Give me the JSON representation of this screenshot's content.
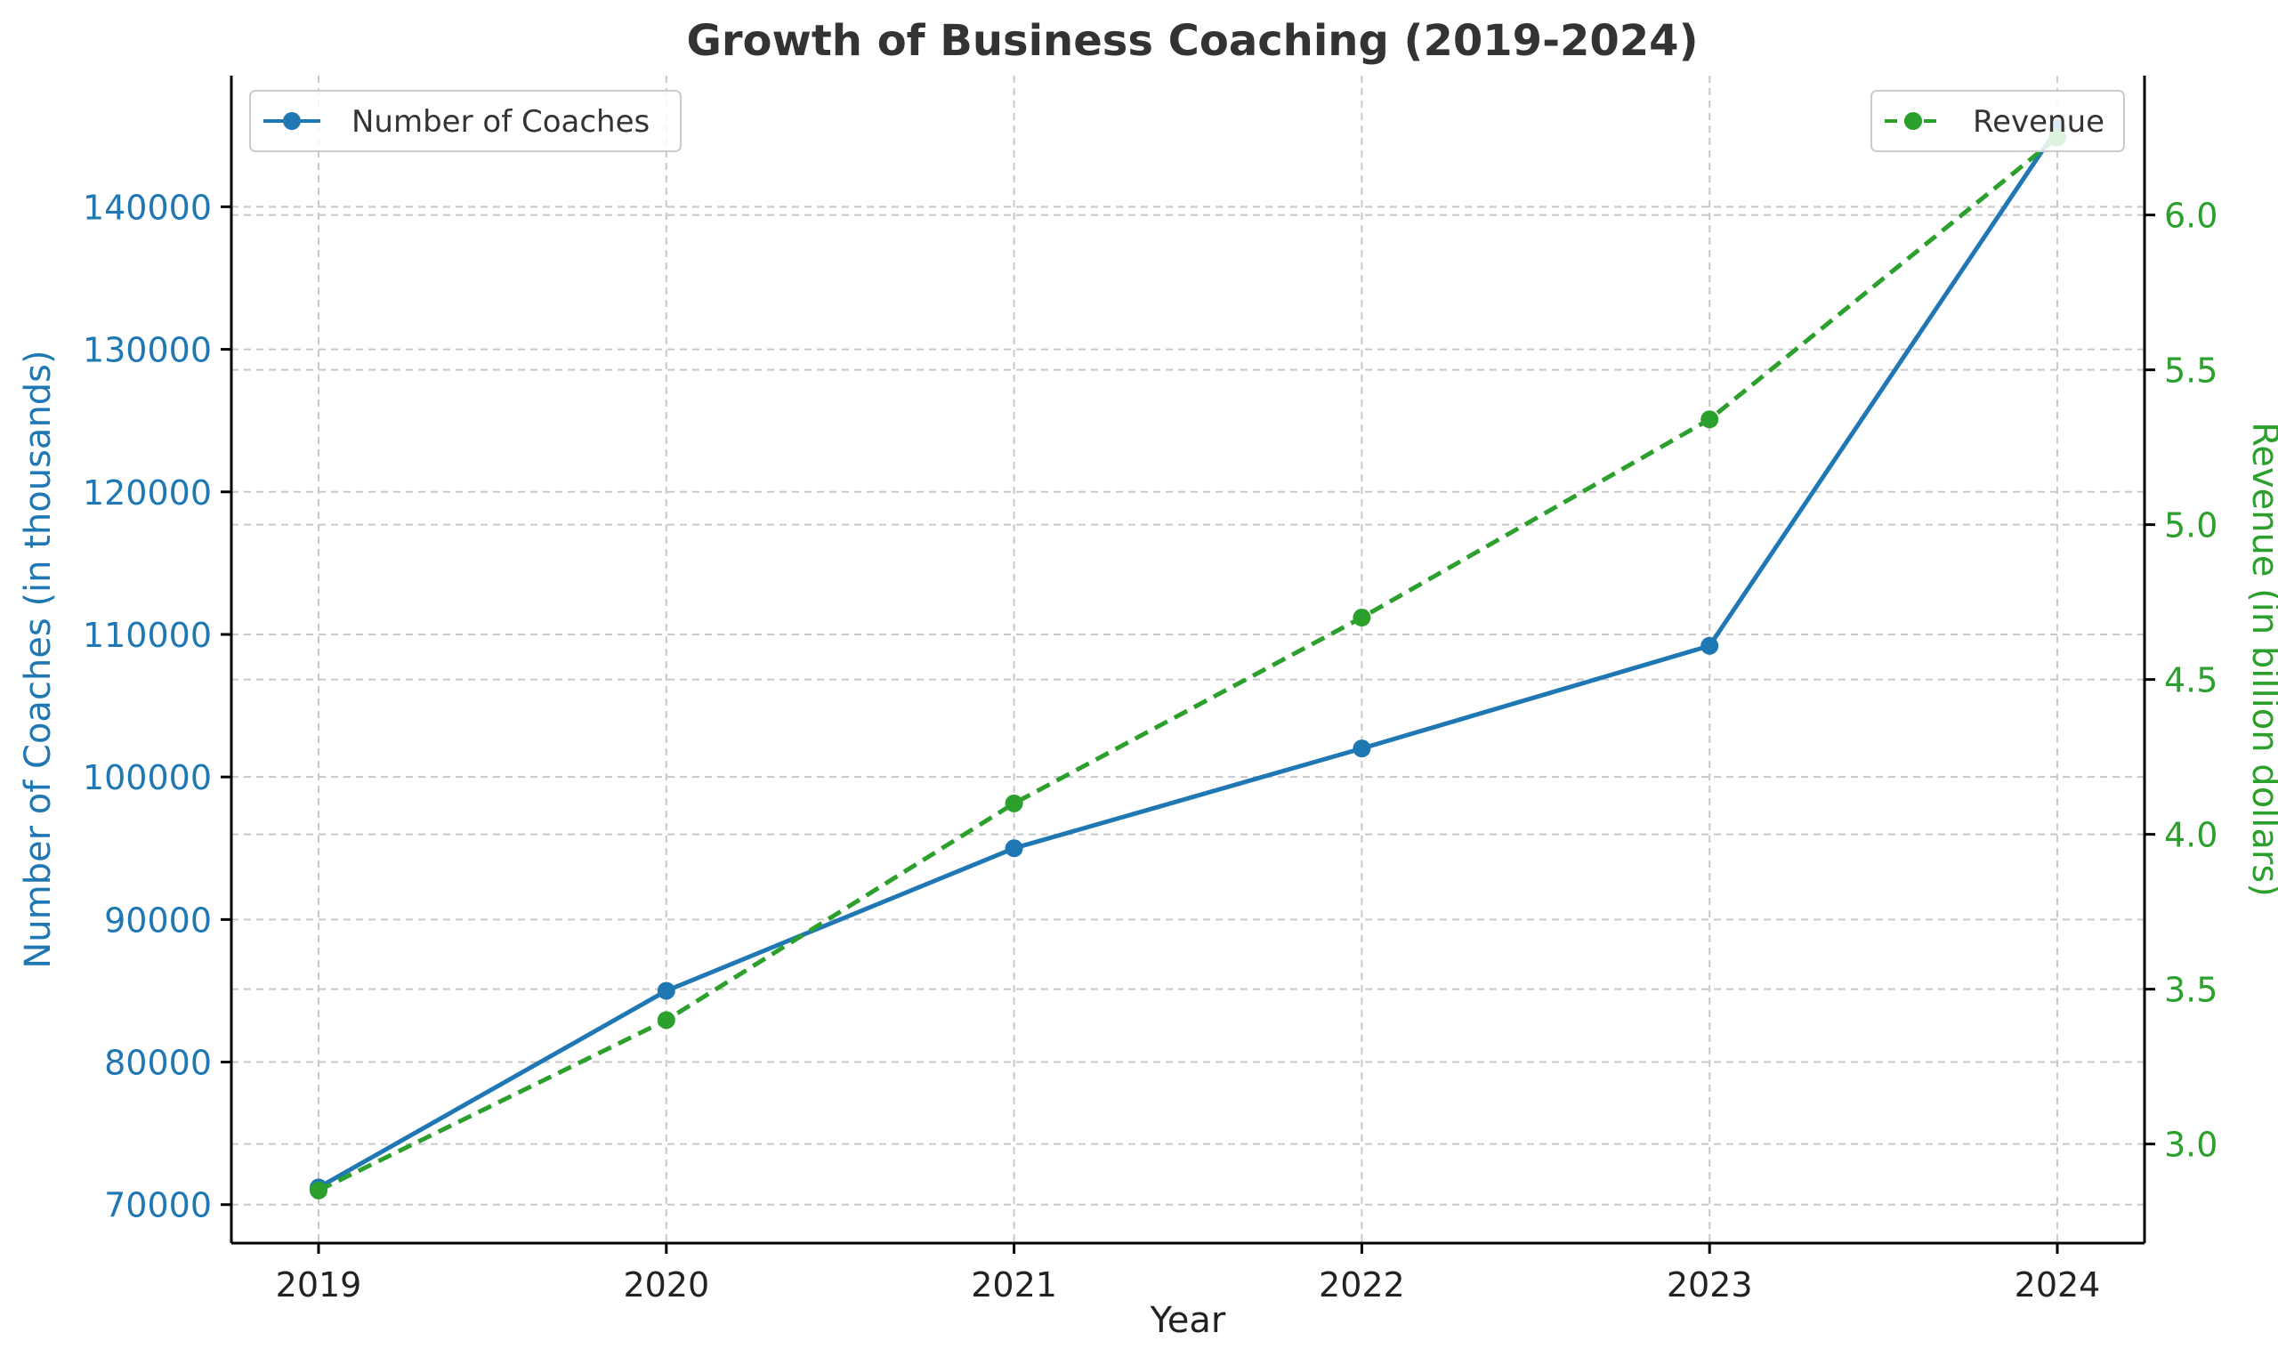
{
  "chart_data": {
    "type": "line",
    "title": "Growth of Business Coaching (2019-2024)",
    "xlabel": "Year",
    "ylabel_left": "Number of Coaches (in thousands)",
    "ylabel_right": "Revenue (in billion dollars)",
    "categories": [
      "2019",
      "2020",
      "2021",
      "2022",
      "2023",
      "2024"
    ],
    "series": [
      {
        "name": "Number of Coaches",
        "axis": "left",
        "color": "#1f77b4",
        "style": "solid",
        "marker": "circle",
        "values": [
          71200,
          85000,
          95000,
          102000,
          109200,
          145500
        ]
      },
      {
        "name": "Revenue",
        "axis": "right",
        "color": "#2ca02c",
        "style": "dashed",
        "marker": "circle",
        "values": [
          2.85,
          3.4,
          4.1,
          4.7,
          5.34,
          6.25
        ]
      }
    ],
    "ylim_left": [
      67300,
      149200
    ],
    "yticks_left": [
      70000,
      80000,
      90000,
      100000,
      110000,
      120000,
      130000,
      140000
    ],
    "ylim_right": [
      2.68,
      6.45
    ],
    "yticks_right": [
      "3.0",
      "3.5",
      "4.0",
      "4.5",
      "5.0",
      "5.5",
      "6.0"
    ],
    "grid": true,
    "legend_left_position": "top-left",
    "legend_right_position": "top-right"
  }
}
